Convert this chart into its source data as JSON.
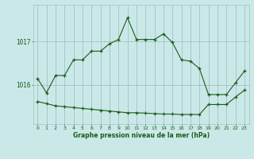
{
  "title": "Graphe pression niveau de la mer (hPa)",
  "background_color": "#cbe8e8",
  "grid_color": "#9dc4c4",
  "line_color": "#1a5c1a",
  "xlim": [
    -0.5,
    23.5
  ],
  "ylim": [
    1015.1,
    1017.85
  ],
  "yticks": [
    1016,
    1017
  ],
  "xticks": [
    0,
    1,
    2,
    3,
    4,
    5,
    6,
    7,
    8,
    9,
    10,
    11,
    12,
    13,
    14,
    15,
    16,
    17,
    18,
    19,
    20,
    21,
    22,
    23
  ],
  "series1_x": [
    0,
    1,
    2,
    3,
    4,
    5,
    6,
    7,
    8,
    9,
    10,
    11,
    12,
    13,
    14,
    15,
    16,
    17,
    18,
    19,
    20,
    21,
    22,
    23
  ],
  "series1_y": [
    1016.15,
    1015.82,
    1016.22,
    1016.22,
    1016.58,
    1016.58,
    1016.78,
    1016.78,
    1016.95,
    1017.05,
    1017.55,
    1017.05,
    1017.05,
    1017.05,
    1017.18,
    1016.98,
    1016.58,
    1016.55,
    1016.38,
    1015.78,
    1015.78,
    1015.78,
    1016.05,
    1016.32
  ],
  "series2_x": [
    0,
    1,
    2,
    3,
    4,
    5,
    6,
    7,
    8,
    9,
    10,
    11,
    12,
    13,
    14,
    15,
    16,
    17,
    18,
    19,
    20,
    21,
    22,
    23
  ],
  "series2_y": [
    1015.62,
    1015.57,
    1015.52,
    1015.5,
    1015.48,
    1015.46,
    1015.44,
    1015.42,
    1015.4,
    1015.38,
    1015.36,
    1015.36,
    1015.35,
    1015.34,
    1015.33,
    1015.33,
    1015.32,
    1015.32,
    1015.32,
    1015.55,
    1015.55,
    1015.55,
    1015.72,
    1015.88
  ]
}
